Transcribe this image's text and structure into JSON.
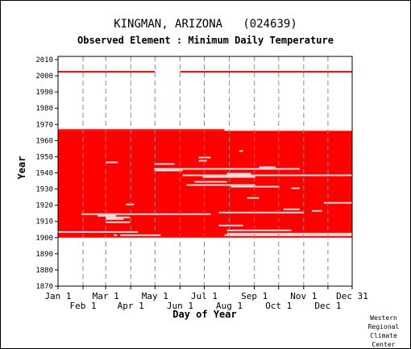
{
  "chart_data": {
    "type": "heatmap",
    "title": "KINGMAN, ARIZONA   (024639)",
    "subtitle": "Observed Element : Minimum Daily Temperature",
    "xlabel": "Day of Year",
    "ylabel": "Year",
    "xlim": [
      1,
      365
    ],
    "ylim": [
      1870,
      2012
    ],
    "y_ticks": [
      1870,
      1880,
      1890,
      1900,
      1910,
      1920,
      1930,
      1940,
      1950,
      1960,
      1970,
      1980,
      1990,
      2000,
      2010
    ],
    "x_ticks_top_row": [
      {
        "label": "Jan 1",
        "day": 1
      },
      {
        "label": "Mar 1",
        "day": 60
      },
      {
        "label": "May 1",
        "day": 121
      },
      {
        "label": "Jul 1",
        "day": 182
      },
      {
        "label": "Sep 1",
        "day": 244
      },
      {
        "label": "Nov 1",
        "day": 305
      },
      {
        "label": "Dec 31",
        "day": 365
      }
    ],
    "x_ticks_bottom_row": [
      {
        "label": "Feb 1",
        "day": 32
      },
      {
        "label": "Apr 1",
        "day": 91
      },
      {
        "label": "Jun 1",
        "day": 152
      },
      {
        "label": "Aug 1",
        "day": 213
      },
      {
        "label": "Oct 1",
        "day": 274
      },
      {
        "label": "Dec 1",
        "day": 335
      }
    ],
    "grid": "dashed vertical at month starts",
    "data_color": "#ff0000",
    "data_blocks": [
      {
        "years": [
          1900,
          1966
        ],
        "days": [
          1,
          365
        ]
      },
      {
        "years": [
          1966,
          1967
        ],
        "days": [
          1,
          207
        ]
      },
      {
        "years": [
          2002,
          2003
        ],
        "days": [
          1,
          121
        ]
      },
      {
        "years": [
          2002,
          2003
        ],
        "days": [
          152,
          365
        ]
      }
    ],
    "missing_gaps": [
      {
        "year": 1901,
        "days": [
          70,
          74
        ]
      },
      {
        "year": 1901,
        "days": [
          78,
          128
        ]
      },
      {
        "year": 1901,
        "days": [
          207,
          365
        ]
      },
      {
        "year": 1902,
        "days": [
          210,
          365
        ]
      },
      {
        "year": 1903,
        "days": [
          1,
          100
        ]
      },
      {
        "year": 1904,
        "days": [
          210,
          290
        ]
      },
      {
        "year": 1907,
        "days": [
          200,
          230
        ]
      },
      {
        "year": 1909,
        "days": [
          60,
          90
        ]
      },
      {
        "year": 1911,
        "days": [
          60,
          82
        ]
      },
      {
        "year": 1912,
        "days": [
          60,
          90
        ]
      },
      {
        "year": 1913,
        "days": [
          50,
          73
        ]
      },
      {
        "year": 1914,
        "days": [
          30,
          190
        ]
      },
      {
        "year": 1915,
        "days": [
          200,
          305
        ]
      },
      {
        "year": 1916,
        "days": [
          315,
          328
        ]
      },
      {
        "year": 1917,
        "days": [
          280,
          300
        ]
      },
      {
        "year": 1920,
        "days": [
          85,
          95
        ]
      },
      {
        "year": 1921,
        "days": [
          330,
          365
        ]
      },
      {
        "year": 1924,
        "days": [
          235,
          250
        ]
      },
      {
        "year": 1930,
        "days": [
          290,
          300
        ]
      },
      {
        "year": 1931,
        "days": [
          215,
          275
        ]
      },
      {
        "year": 1932,
        "days": [
          160,
          245
        ]
      },
      {
        "year": 1934,
        "days": [
          170,
          210
        ]
      },
      {
        "year": 1937,
        "days": [
          180,
          245
        ]
      },
      {
        "year": 1938,
        "days": [
          155,
          365
        ]
      },
      {
        "year": 1939,
        "days": [
          210,
          240
        ]
      },
      {
        "year": 1941,
        "days": [
          120,
          155
        ]
      },
      {
        "year": 1942,
        "days": [
          120,
          300
        ]
      },
      {
        "year": 1943,
        "days": [
          250,
          270
        ]
      },
      {
        "year": 1945,
        "days": [
          120,
          145
        ]
      },
      {
        "year": 1946,
        "days": [
          60,
          75
        ]
      },
      {
        "year": 1947,
        "days": [
          175,
          185
        ]
      },
      {
        "year": 1949,
        "days": [
          175,
          190
        ]
      },
      {
        "year": 1953,
        "days": [
          225,
          230
        ]
      }
    ]
  },
  "credit": [
    "Western",
    "Regional",
    "Climate",
    "Center"
  ]
}
